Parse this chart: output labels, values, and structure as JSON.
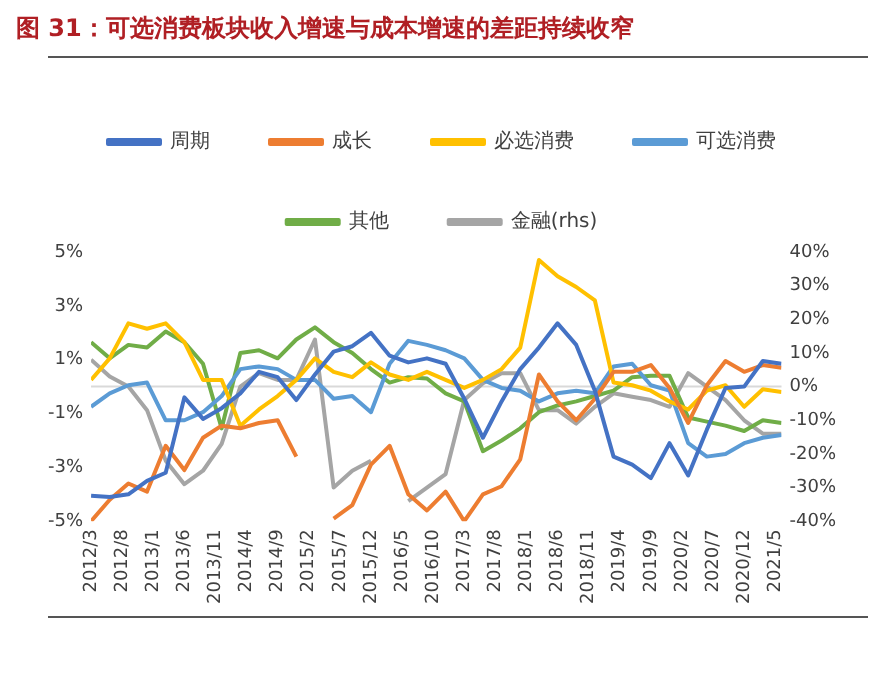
{
  "chart_data": {
    "type": "line",
    "title": "图 31：可选消费板块收入增速与成本增速的差距持续收窄",
    "x": [
      "2012-03",
      "2012-06",
      "2012-09",
      "2012-12",
      "2013-03",
      "2013-06",
      "2013-09",
      "2013-12",
      "2014-03",
      "2014-06",
      "2014-09",
      "2014-12",
      "2015-03",
      "2015-06",
      "2015-09",
      "2015-12",
      "2016-03",
      "2016-06",
      "2016-09",
      "2016-12",
      "2017-03",
      "2017-06",
      "2017-09",
      "2017-12",
      "2018-03",
      "2018-06",
      "2018-09",
      "2018-12",
      "2019-03",
      "2019-06",
      "2019-09",
      "2019-12",
      "2020-03",
      "2020-06",
      "2020-09",
      "2020-12",
      "2021-03",
      "2021-06"
    ],
    "series": [
      {
        "name": "周期",
        "color": "#4472c4",
        "values": [
          -4.05,
          -4.1,
          -4.0,
          -3.5,
          -3.2,
          -0.4,
          -1.2,
          -0.8,
          -0.25,
          0.55,
          0.35,
          -0.5,
          0.45,
          1.3,
          1.5,
          2.0,
          1.15,
          0.9,
          1.05,
          0.85,
          -0.45,
          -1.9,
          -0.55,
          0.65,
          1.45,
          2.35,
          1.55,
          -0.15,
          -2.6,
          -2.9,
          -3.4,
          -2.1,
          -3.3,
          -1.6,
          -0.05,
          0,
          0.95,
          0.85
        ]
      },
      {
        "name": "成长",
        "color": "#ed7d31",
        "values": [
          -5.0,
          -4.2,
          -3.6,
          -3.9,
          -2.2,
          -3.1,
          -1.9,
          -1.45,
          -1.55,
          -1.35,
          -1.25,
          -2.6,
          null,
          -4.9,
          -4.4,
          -2.9,
          -2.2,
          -4.0,
          -4.6,
          -3.9,
          -5.0,
          -4.0,
          -3.7,
          -2.7,
          0.45,
          -0.55,
          -1.25,
          -0.45,
          0.55,
          0.55,
          0.8,
          -0.05,
          -1.35,
          0.05,
          0.95,
          0.55,
          0.8,
          0.7
        ]
      },
      {
        "name": "必选消费",
        "color": "#ffc000",
        "values": [
          0.25,
          1.05,
          2.35,
          2.15,
          2.35,
          1.65,
          0.25,
          0.25,
          -1.45,
          -0.85,
          -0.35,
          0.25,
          1.05,
          0.55,
          0.35,
          0.9,
          0.45,
          0.25,
          0.55,
          0.25,
          -0.05,
          0.25,
          0.65,
          1.45,
          4.7,
          4.1,
          3.7,
          3.2,
          0.15,
          0.05,
          -0.15,
          -0.55,
          -0.85,
          -0.15,
          0.05,
          -0.75,
          -0.1,
          -0.2
        ]
      },
      {
        "name": "可选消费",
        "color": "#5b9bd5",
        "values": [
          -0.75,
          -0.25,
          0.05,
          0.15,
          -1.25,
          -1.25,
          -0.95,
          -0.35,
          0.65,
          0.75,
          0.65,
          0.25,
          0.25,
          -0.45,
          -0.35,
          -0.95,
          0.85,
          1.7,
          1.55,
          1.35,
          1.05,
          0.25,
          -0.05,
          -0.15,
          -0.55,
          -0.25,
          -0.15,
          -0.25,
          0.75,
          0.85,
          0.05,
          -0.15,
          -2.1,
          -2.6,
          -2.5,
          -2.1,
          -1.9,
          -1.8
        ]
      },
      {
        "name": "其他",
        "color": "#70ad47",
        "values": [
          1.65,
          1.05,
          1.55,
          1.45,
          2.05,
          1.65,
          0.85,
          -1.55,
          1.25,
          1.35,
          1.05,
          1.75,
          2.2,
          1.65,
          1.25,
          0.65,
          0.15,
          0.35,
          0.3,
          -0.25,
          -0.55,
          -2.4,
          -2.0,
          -1.55,
          -0.95,
          -0.7,
          -0.55,
          -0.35,
          -0.15,
          0.35,
          0.4,
          0.4,
          -1.15,
          -1.3,
          -1.45,
          -1.65,
          -1.25,
          -1.35
        ]
      },
      {
        "name": "金融(rhs)",
        "color": "#a5a5a5",
        "axis": "y2",
        "values": [
          8,
          3,
          0,
          -7,
          -22,
          -29,
          -25,
          -17,
          0,
          4,
          2,
          2,
          14,
          -30,
          -25,
          -22,
          null,
          -34,
          -30,
          -26,
          -4,
          1,
          4,
          4,
          -7,
          -7,
          -11,
          -6,
          -2,
          -3,
          -4,
          -6,
          4,
          0,
          -4,
          -10,
          -14,
          -14
        ]
      }
    ],
    "xlim": [
      "2012-03",
      "2021-06"
    ],
    "xticks": [
      {
        "value": "2012-03",
        "label": "2012/3"
      },
      {
        "value": "2012-08",
        "label": "2012/8"
      },
      {
        "value": "2013-01",
        "label": "2013/1"
      },
      {
        "value": "2013-06",
        "label": "2013/6"
      },
      {
        "value": "2013-11",
        "label": "2013/11"
      },
      {
        "value": "2014-04",
        "label": "2014/4"
      },
      {
        "value": "2014-09",
        "label": "2014/9"
      },
      {
        "value": "2015-02",
        "label": "2015/2"
      },
      {
        "value": "2015-07",
        "label": "2015/7"
      },
      {
        "value": "2015-12",
        "label": "2015/12"
      },
      {
        "value": "2016-05",
        "label": "2016/5"
      },
      {
        "value": "2016-10",
        "label": "2016/10"
      },
      {
        "value": "2017-03",
        "label": "2017/3"
      },
      {
        "value": "2017-08",
        "label": "2017/8"
      },
      {
        "value": "2018-01",
        "label": "2018/1"
      },
      {
        "value": "2018-06",
        "label": "2018/6"
      },
      {
        "value": "2018-11",
        "label": "2018/11"
      },
      {
        "value": "2019-04",
        "label": "2019/4"
      },
      {
        "value": "2019-09",
        "label": "2019/9"
      },
      {
        "value": "2020-02",
        "label": "2020/2"
      },
      {
        "value": "2020-07",
        "label": "2020/7"
      },
      {
        "value": "2020-12",
        "label": "2020/12"
      },
      {
        "value": "2021-05",
        "label": "2021/5"
      }
    ],
    "ylim": [
      -5,
      5
    ],
    "yticks": [
      {
        "value": -5,
        "label": "-5%"
      },
      {
        "value": -3,
        "label": "-3%"
      },
      {
        "value": -1,
        "label": "-1%"
      },
      {
        "value": 1,
        "label": "1%"
      },
      {
        "value": 3,
        "label": "3%"
      },
      {
        "value": 5,
        "label": "5%"
      }
    ],
    "y2lim": [
      -40,
      40
    ],
    "y2ticks": [
      {
        "value": -40,
        "label": "-40%"
      },
      {
        "value": -30,
        "label": "-30%"
      },
      {
        "value": -20,
        "label": "-20%"
      },
      {
        "value": -10,
        "label": "-10%"
      },
      {
        "value": 0,
        "label": "0%"
      },
      {
        "value": 10,
        "label": "10%"
      },
      {
        "value": 20,
        "label": "20%"
      },
      {
        "value": 30,
        "label": "30%"
      },
      {
        "value": 40,
        "label": "40%"
      }
    ],
    "ref_lines": [
      {
        "axis": "y",
        "value": 0,
        "color": "#d9d9d9"
      }
    ],
    "grid": false,
    "legend": "top",
    "marker": "none",
    "line_style": "solid"
  }
}
